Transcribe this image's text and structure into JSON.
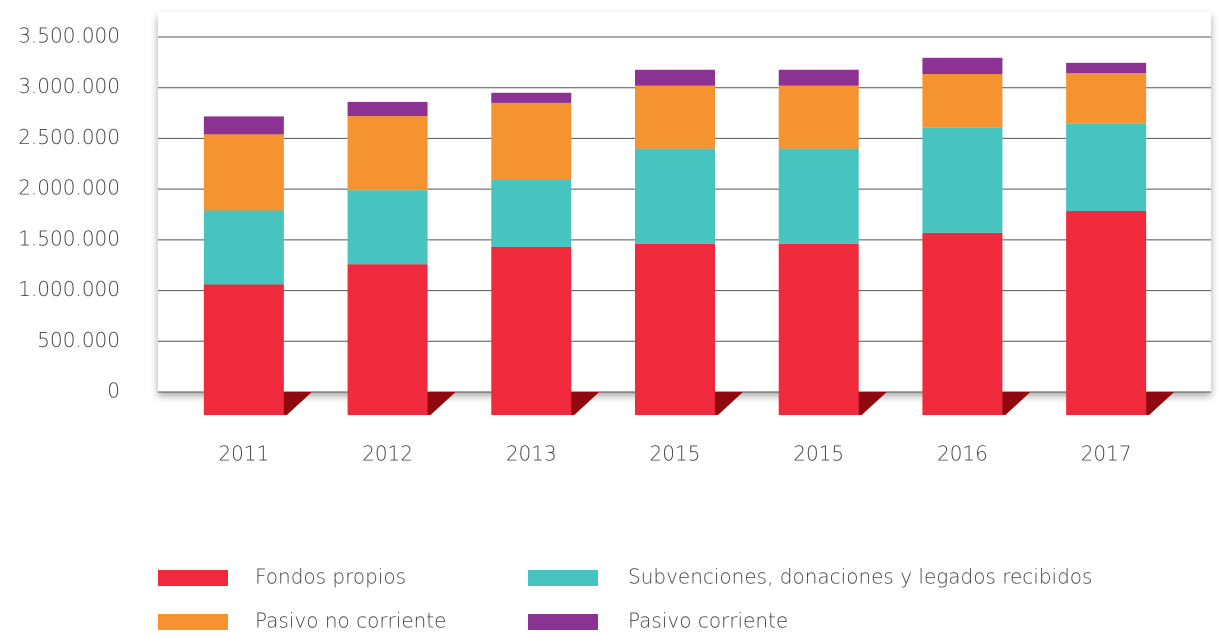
{
  "chart_data": {
    "type": "stacked_bar",
    "categories": [
      "2011",
      "2012",
      "2013",
      "2015",
      "2015",
      "2016",
      "2017"
    ],
    "series": [
      {
        "name": "Fondos propios",
        "color": "#ee2a3c",
        "values": [
          1060000,
          1260000,
          1430000,
          1460000,
          1460000,
          1570000,
          1785000
        ]
      },
      {
        "name": "Subvenciones, donaciones y legados recibidos",
        "color": "#47c4c0",
        "values": [
          730000,
          730000,
          660000,
          940000,
          940000,
          1035000,
          860000
        ]
      },
      {
        "name": "Pasivo no corriente",
        "color": "#f59331",
        "values": [
          750000,
          730000,
          760000,
          620000,
          620000,
          530000,
          500000
        ]
      },
      {
        "name": "Pasivo corriente",
        "color": "#8b3292",
        "values": [
          177000,
          140000,
          100000,
          157000,
          157000,
          160000,
          100000
        ]
      }
    ],
    "ylim": [
      0,
      3500000
    ],
    "yticks": [
      0,
      {
        "value": 500000,
        "label": "500.000"
      },
      {
        "value": 1000000,
        "label": "1.000.000"
      },
      {
        "value": 1500000,
        "label": "1.500.000"
      },
      {
        "value": 2000000,
        "label": "2.000.000"
      },
      {
        "value": 2500000,
        "label": "2.500.000"
      },
      {
        "value": 3000000,
        "label": "3.000.000"
      },
      {
        "value": 3500000,
        "label": "3.500.000"
      }
    ],
    "grid": true
  }
}
